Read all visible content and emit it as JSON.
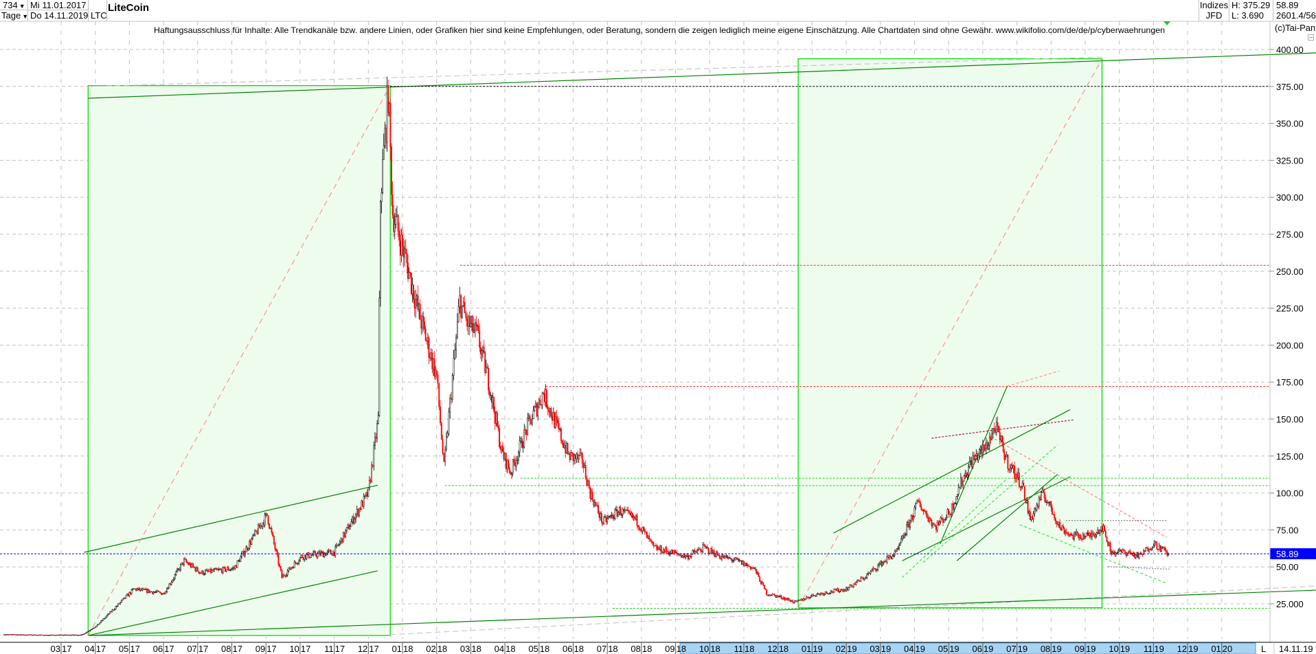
{
  "header": {
    "bars_count": "734",
    "period": "Tage",
    "start_date": "Mi 11.01.2017",
    "end_date": "Do 14.11.2019",
    "symbol": "LTC",
    "title": "LiteCoin",
    "exchange_group": "Indizes",
    "exchange": "JFD",
    "high": "H: 375.29",
    "low": "L: 3.690",
    "last": "58.89",
    "extra": "2601.4/56",
    "copyright": "(c)Tai-Pan"
  },
  "disclaimer": "Haftungsausschluss für Inhalte: Alle Trendkanäle bzw. andere Linien, oder Grafiken hier sind keine Empfehlungen, oder Beratung, sondern die zeigen lediglich meine eigene Einschätzung. Alle Chartdaten sind ohne Gewähr.  www.wikifolio.com/de/de/p/cyberwaehrungen",
  "colors": {
    "up_candle": "#000000",
    "down_candle": "#ff0000",
    "box_fill": "#eefcee",
    "box_stroke": "#00dd00",
    "trendline": "#008000",
    "last_price": "#0000ff",
    "grid": "#c0c0c0",
    "range_highlight": "#a8d4f4"
  },
  "chart_data": {
    "type": "candlestick",
    "title": "LiteCoin",
    "ylim": [
      0,
      419
    ],
    "grid": true,
    "y_ticks": [
      "400.00",
      "375.00",
      "350.00",
      "325.00",
      "300.00",
      "275.00",
      "250.00",
      "225.00",
      "200.00",
      "175.00",
      "150.00",
      "125.00",
      "100.00",
      "75.00",
      "50.00",
      "25.000"
    ],
    "x_ticks": [
      {
        "m": "03",
        "y": "17"
      },
      {
        "m": "04",
        "y": "17"
      },
      {
        "m": "05",
        "y": "17"
      },
      {
        "m": "06",
        "y": "17"
      },
      {
        "m": "07",
        "y": "17"
      },
      {
        "m": "08",
        "y": "17"
      },
      {
        "m": "09",
        "y": "17"
      },
      {
        "m": "10",
        "y": "17"
      },
      {
        "m": "11",
        "y": "17"
      },
      {
        "m": "12",
        "y": "17"
      },
      {
        "m": "01",
        "y": "18"
      },
      {
        "m": "02",
        "y": "18"
      },
      {
        "m": "03",
        "y": "18"
      },
      {
        "m": "04",
        "y": "18"
      },
      {
        "m": "05",
        "y": "18"
      },
      {
        "m": "06",
        "y": "18"
      },
      {
        "m": "07",
        "y": "18"
      },
      {
        "m": "08",
        "y": "18"
      },
      {
        "m": "09",
        "y": "18"
      },
      {
        "m": "10",
        "y": "18"
      },
      {
        "m": "11",
        "y": "18"
      },
      {
        "m": "12",
        "y": "18"
      },
      {
        "m": "01",
        "y": "19"
      },
      {
        "m": "02",
        "y": "19"
      },
      {
        "m": "03",
        "y": "19"
      },
      {
        "m": "04",
        "y": "19"
      },
      {
        "m": "05",
        "y": "19"
      },
      {
        "m": "06",
        "y": "19"
      },
      {
        "m": "07",
        "y": "19"
      },
      {
        "m": "08",
        "y": "19"
      },
      {
        "m": "09",
        "y": "19"
      },
      {
        "m": "10",
        "y": "19"
      },
      {
        "m": "11",
        "y": "19"
      },
      {
        "m": "12",
        "y": "19"
      },
      {
        "m": "01",
        "y": "20"
      }
    ],
    "last_value": 58.89,
    "last_value_label": "58.89",
    "axis_mode_label": "L",
    "axis_date_label": "14.11.19",
    "closes": [
      [
        "2017-01-11",
        4.3
      ],
      [
        "2017-02-15",
        3.9
      ],
      [
        "2017-03-20",
        4.0
      ],
      [
        "2017-04-02",
        10
      ],
      [
        "2017-05-05",
        35
      ],
      [
        "2017-06-01",
        32
      ],
      [
        "2017-06-19",
        54
      ],
      [
        "2017-07-04",
        46
      ],
      [
        "2017-08-03",
        49
      ],
      [
        "2017-09-02",
        85
      ],
      [
        "2017-09-15",
        43
      ],
      [
        "2017-10-02",
        57
      ],
      [
        "2017-11-01",
        60
      ],
      [
        "2017-12-01",
        100
      ],
      [
        "2017-12-10",
        150
      ],
      [
        "2017-12-12",
        300
      ],
      [
        "2017-12-19",
        371
      ],
      [
        "2017-12-23",
        290
      ],
      [
        "2018-01-04",
        258
      ],
      [
        "2018-01-15",
        224
      ],
      [
        "2018-02-01",
        179
      ],
      [
        "2018-02-07",
        117
      ],
      [
        "2018-02-20",
        230
      ],
      [
        "2018-02-26",
        215
      ],
      [
        "2018-03-07",
        207
      ],
      [
        "2018-03-18",
        173
      ],
      [
        "2018-03-29",
        128
      ],
      [
        "2018-04-06",
        114
      ],
      [
        "2018-04-21",
        145
      ],
      [
        "2018-05-05",
        168
      ],
      [
        "2018-05-17",
        145
      ],
      [
        "2018-05-28",
        125
      ],
      [
        "2018-06-09",
        122
      ],
      [
        "2018-06-16",
        100
      ],
      [
        "2018-06-27",
        80
      ],
      [
        "2018-07-12",
        88
      ],
      [
        "2018-07-27",
        82
      ],
      [
        "2018-08-12",
        63
      ],
      [
        "2018-08-27",
        60
      ],
      [
        "2018-09-11",
        57
      ],
      [
        "2018-09-26",
        63
      ],
      [
        "2018-10-11",
        57
      ],
      [
        "2018-10-26",
        54
      ],
      [
        "2018-11-10",
        49
      ],
      [
        "2018-11-21",
        32
      ],
      [
        "2018-12-06",
        29
      ],
      [
        "2018-12-17",
        26
      ],
      [
        "2019-01-02",
        31
      ],
      [
        "2019-01-16",
        33
      ],
      [
        "2019-02-01",
        35
      ],
      [
        "2019-02-16",
        43
      ],
      [
        "2019-03-01",
        52
      ],
      [
        "2019-03-16",
        60
      ],
      [
        "2019-04-02",
        90
      ],
      [
        "2019-04-04",
        94
      ],
      [
        "2019-04-19",
        77
      ],
      [
        "2019-05-03",
        88
      ],
      [
        "2019-05-11",
        105
      ],
      [
        "2019-05-22",
        122
      ],
      [
        "2019-06-03",
        130
      ],
      [
        "2019-06-12",
        145
      ],
      [
        "2019-06-22",
        122
      ],
      [
        "2019-07-06",
        105
      ],
      [
        "2019-07-13",
        82
      ],
      [
        "2019-07-25",
        100
      ],
      [
        "2019-08-09",
        77
      ],
      [
        "2019-08-20",
        71
      ],
      [
        "2019-09-05",
        71
      ],
      [
        "2019-09-16",
        77
      ],
      [
        "2019-09-24",
        60
      ],
      [
        "2019-10-08",
        60
      ],
      [
        "2019-10-19",
        57
      ],
      [
        "2019-11-01",
        66
      ],
      [
        "2019-11-14",
        58.89
      ]
    ],
    "horizontal_levels": [
      375,
      254,
      172,
      110,
      105,
      22
    ]
  }
}
